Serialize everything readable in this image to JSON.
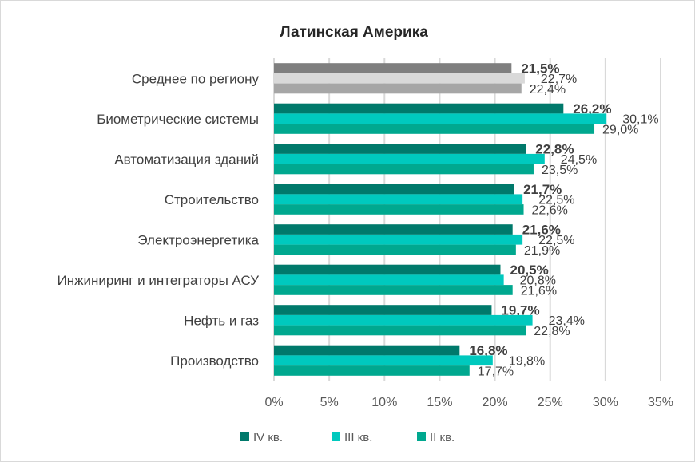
{
  "chart_data": {
    "type": "bar",
    "orientation": "horizontal",
    "title": "Латинская Америка",
    "categories": [
      "Среднее по региону",
      "Биометрические системы",
      "Автоматизация зданий",
      "Строительство",
      "Электроэнергетика",
      "Инжиниринг и интеграторы АСУ",
      "Нефть и газ",
      "Производство"
    ],
    "series": [
      {
        "name": "IV кв.",
        "color": "#00796B",
        "values": [
          21.5,
          26.2,
          22.8,
          21.7,
          21.6,
          20.5,
          19.7,
          16.8
        ],
        "labels": [
          "21,5%",
          "26,2%",
          "22,8%",
          "21,7%",
          "21,6%",
          "20,5%",
          "19,7%",
          "16,8%"
        ]
      },
      {
        "name": "III кв.",
        "color": "#00C9BE",
        "values": [
          22.7,
          30.1,
          24.5,
          22.5,
          22.5,
          20.8,
          23.4,
          19.8
        ],
        "labels": [
          "22,7%",
          "30,1%",
          "24,5%",
          "22,5%",
          "22,5%",
          "20,8%",
          "23,4%",
          "19,8%"
        ]
      },
      {
        "name": "II кв.",
        "color": "#00A88F",
        "values": [
          22.4,
          29.0,
          23.5,
          22.6,
          21.9,
          21.6,
          22.8,
          17.7
        ],
        "labels": [
          "22,4%",
          "29,0%",
          "23,5%",
          "22,6%",
          "21,9%",
          "21,6%",
          "22,8%",
          "17,7%"
        ]
      }
    ],
    "average_colors": [
      "#7F7F7F",
      "#D9D9D9",
      "#A6A6A6"
    ],
    "xlim": [
      0,
      35
    ],
    "xticks": [
      "0%",
      "5%",
      "10%",
      "15%",
      "20%",
      "25%",
      "30%",
      "35%"
    ],
    "grid": true,
    "legend": "bottom"
  }
}
